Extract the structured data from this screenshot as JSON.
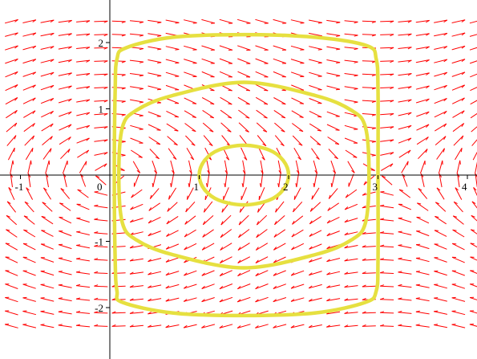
{
  "chart_data": {
    "type": "direction-field",
    "title": "",
    "xlabel": "",
    "ylabel": "",
    "xlim": [
      -1.2,
      4.15
    ],
    "ylim": [
      -2.35,
      2.35
    ],
    "grid": false,
    "legend": "none",
    "x_ticks": [
      {
        "value": -1,
        "label": "-1"
      },
      {
        "value": 0,
        "label": "0"
      },
      {
        "value": 1,
        "label": "1"
      },
      {
        "value": 2,
        "label": "2"
      },
      {
        "value": 3,
        "label": "3"
      },
      {
        "value": 4,
        "label": "4"
      }
    ],
    "y_ticks": [
      {
        "value": 2,
        "label": "2"
      },
      {
        "value": 1,
        "label": "1"
      },
      {
        "value": -1,
        "label": "-1"
      },
      {
        "value": -2,
        "label": "-2"
      }
    ],
    "vector_field": {
      "color": "#ff0000",
      "x_start": -1.1,
      "x_step": 0.2,
      "x_count": 27,
      "y_start": -2.28,
      "y_step": 0.2,
      "y_count": 24,
      "dx_dt": "y",
      "dy_dt": "-x*(x-3)*(x-1.5)^0 ... approximated as sin(pi*x/3)"
    },
    "series": [
      {
        "points": [
          [
            1.0,
            0.0
          ],
          [
            1.06,
            0.22
          ],
          [
            1.22,
            0.38
          ],
          [
            1.5,
            0.45
          ],
          [
            1.78,
            0.38
          ],
          [
            1.94,
            0.22
          ],
          [
            2.0,
            0.0
          ],
          [
            1.94,
            -0.22
          ],
          [
            1.78,
            -0.38
          ],
          [
            1.5,
            -0.45
          ],
          [
            1.22,
            -0.38
          ],
          [
            1.06,
            -0.22
          ],
          [
            1.0,
            0.0
          ]
        ]
      },
      {
        "points": [
          [
            0.1,
            0.0
          ],
          [
            0.14,
            0.72
          ],
          [
            0.3,
            0.98
          ],
          [
            0.7,
            1.2
          ],
          [
            1.5,
            1.4
          ],
          [
            2.3,
            1.2
          ],
          [
            2.7,
            0.98
          ],
          [
            2.86,
            0.72
          ],
          [
            2.9,
            0.0
          ],
          [
            2.86,
            -0.72
          ],
          [
            2.7,
            -0.98
          ],
          [
            2.3,
            -1.2
          ],
          [
            1.5,
            -1.4
          ],
          [
            0.7,
            -1.2
          ],
          [
            0.3,
            -0.98
          ],
          [
            0.14,
            -0.72
          ],
          [
            0.1,
            0.0
          ]
        ]
      },
      {
        "points": [
          [
            0.05,
            0.0
          ],
          [
            0.06,
            1.3
          ],
          [
            0.08,
            1.75
          ],
          [
            0.18,
            1.92
          ],
          [
            0.7,
            2.08
          ],
          [
            1.5,
            2.12
          ],
          [
            2.3,
            2.08
          ],
          [
            2.88,
            1.95
          ],
          [
            2.98,
            1.75
          ],
          [
            3.0,
            1.3
          ],
          [
            3.0,
            0.0
          ],
          [
            3.0,
            -1.3
          ],
          [
            2.98,
            -1.75
          ],
          [
            2.86,
            -1.92
          ],
          [
            2.3,
            -2.08
          ],
          [
            1.5,
            -2.12
          ],
          [
            0.7,
            -2.08
          ],
          [
            0.14,
            -1.92
          ],
          [
            0.08,
            -1.75
          ],
          [
            0.06,
            -1.3
          ],
          [
            0.05,
            0.0
          ]
        ]
      }
    ],
    "orbit_color": "#e6e040"
  }
}
